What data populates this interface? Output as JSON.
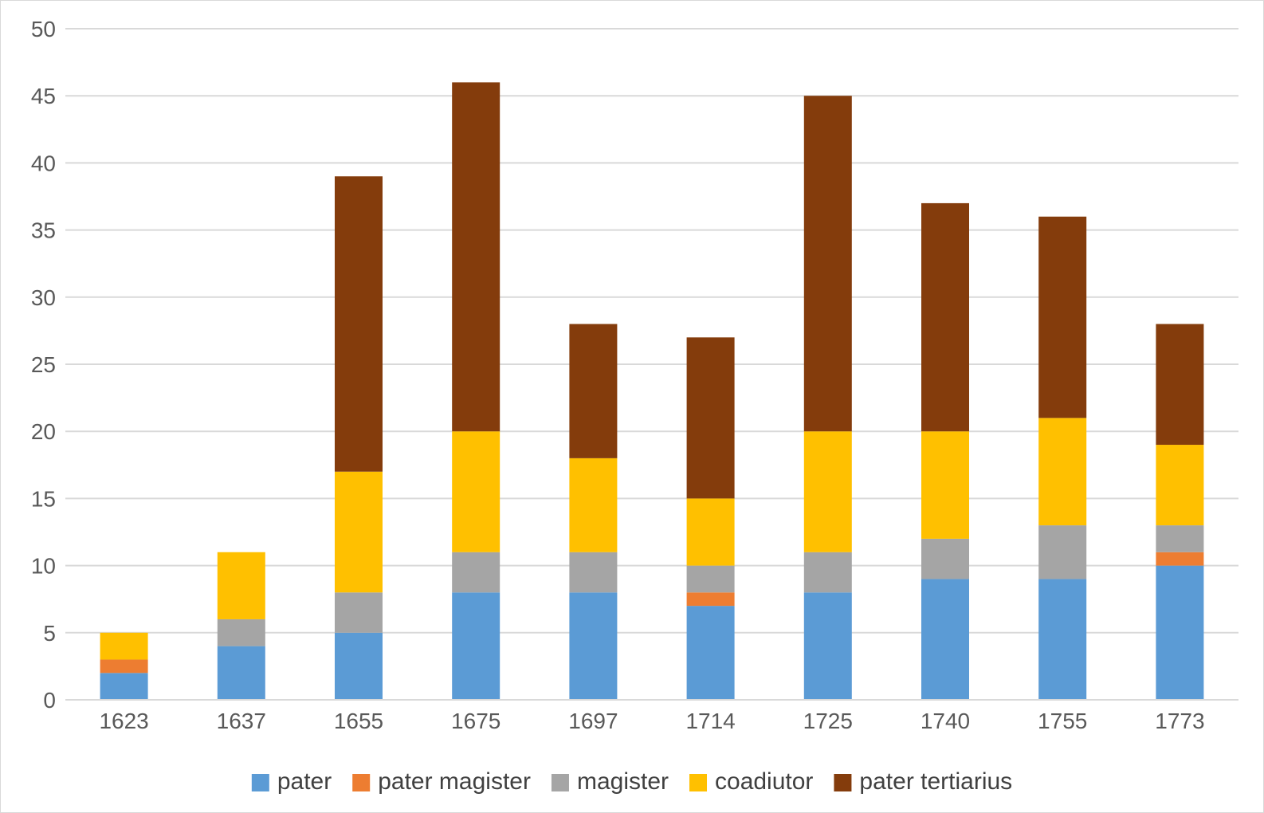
{
  "chart_data": {
    "type": "bar",
    "stacked": true,
    "categories": [
      "1623",
      "1637",
      "1655",
      "1675",
      "1697",
      "1714",
      "1725",
      "1740",
      "1755",
      "1773"
    ],
    "series": [
      {
        "name": "pater",
        "color": "#5b9bd5",
        "values": [
          2,
          4,
          5,
          8,
          8,
          7,
          8,
          9,
          9,
          10
        ]
      },
      {
        "name": "pater magister",
        "color": "#ed7d31",
        "values": [
          1,
          0,
          0,
          0,
          0,
          1,
          0,
          0,
          0,
          1
        ]
      },
      {
        "name": "magister",
        "color": "#a5a5a5",
        "values": [
          0,
          2,
          3,
          3,
          3,
          2,
          3,
          3,
          4,
          2
        ]
      },
      {
        "name": "coadiutor",
        "color": "#ffc000",
        "values": [
          2,
          5,
          9,
          9,
          7,
          5,
          9,
          8,
          8,
          6
        ]
      },
      {
        "name": "pater tertiarius",
        "color": "#843c0c",
        "values": [
          0,
          0,
          22,
          26,
          10,
          12,
          25,
          17,
          15,
          9
        ]
      }
    ],
    "ylim": [
      0,
      50
    ],
    "yticks": [
      0,
      5,
      10,
      15,
      20,
      25,
      30,
      35,
      40,
      45,
      50
    ],
    "grid": true,
    "legend": "bottom",
    "title": "",
    "xlabel": "",
    "ylabel": ""
  }
}
